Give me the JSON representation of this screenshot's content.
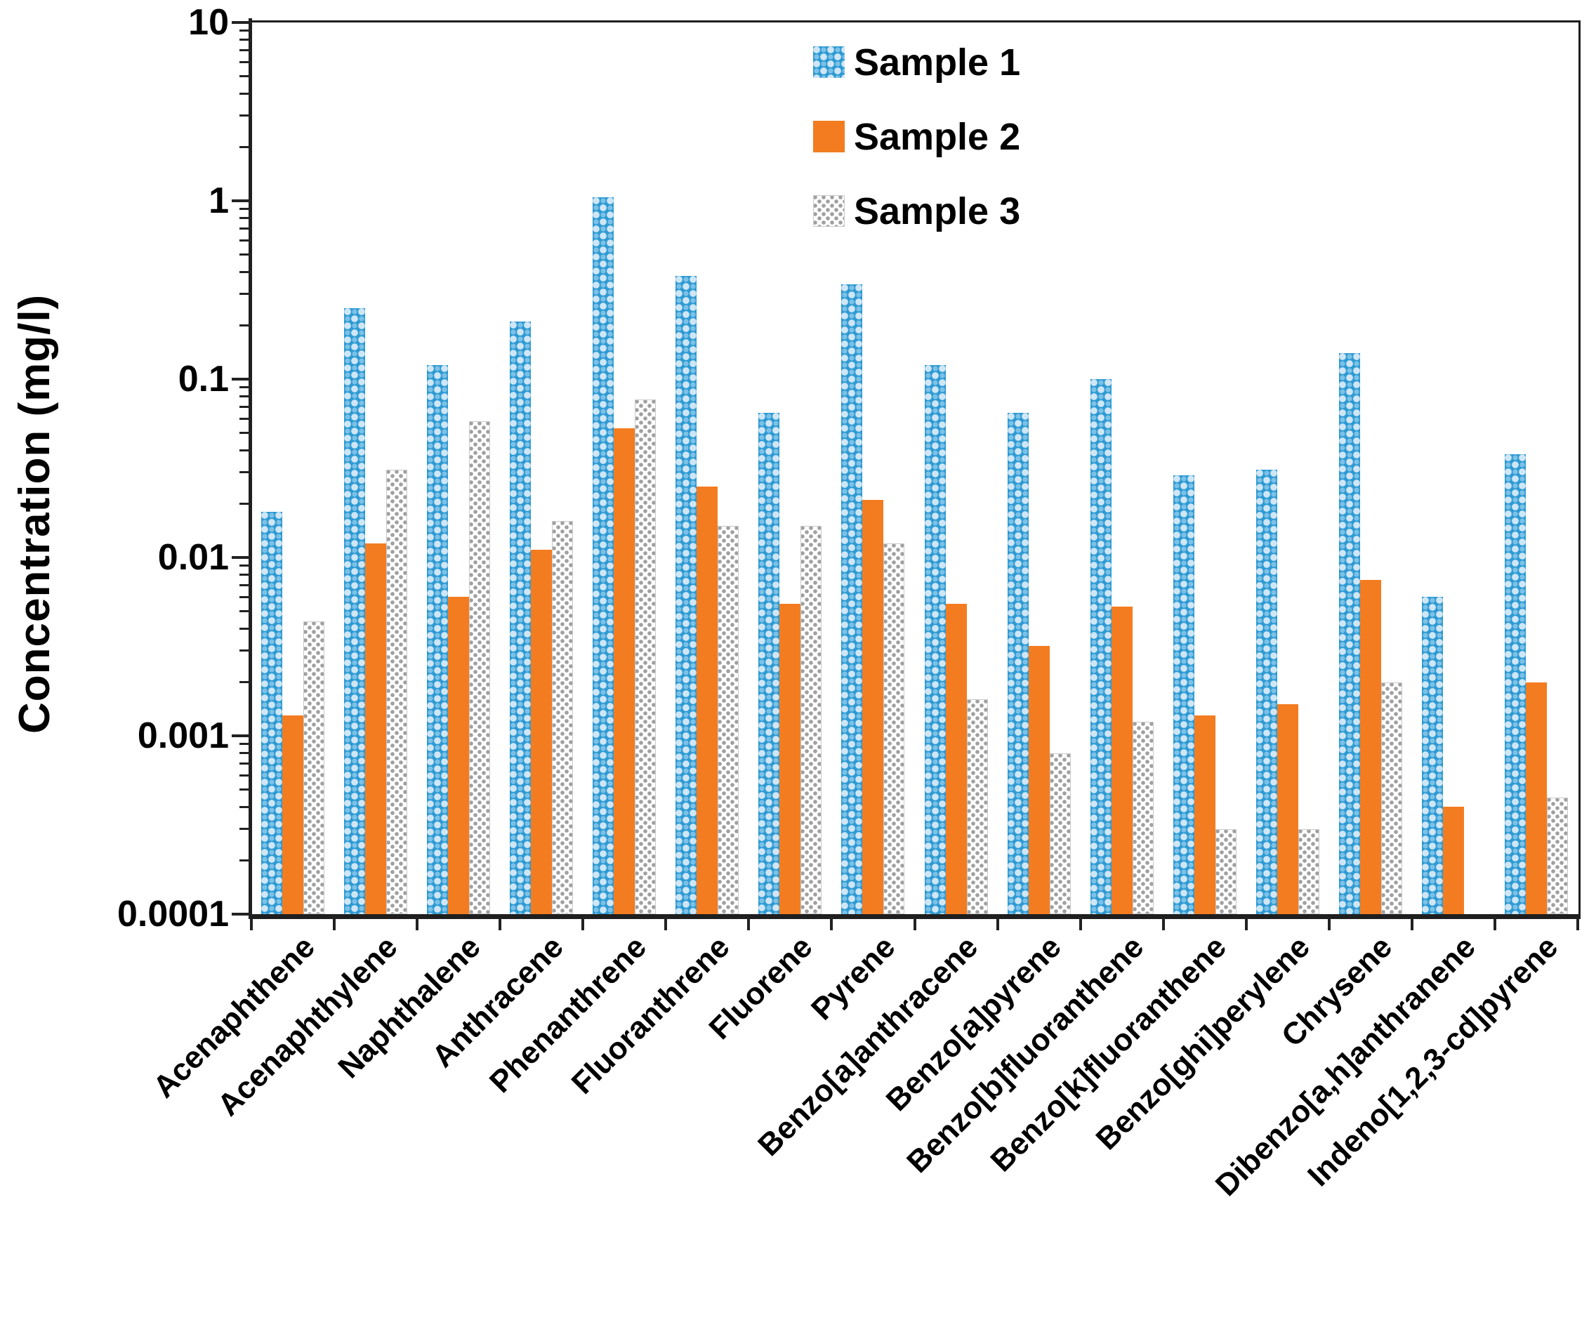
{
  "figure": {
    "y_axis_title": "Concentration (mg/l)",
    "y_tick_labels": [
      "10",
      "1",
      "0.1",
      "0.01",
      "0.001",
      "0.0001"
    ],
    "legend_items": [
      "Sample 1",
      "Sample 2",
      "Sample 3"
    ]
  },
  "colors": {
    "sample1_blue": "#2d9ad3",
    "sample1_pattern_light": "#d8eaf7",
    "sample2_orange": "#f47c20",
    "sample3_gray_dot": "#a0a0a0",
    "axis_black": "#1f1f1f"
  },
  "chart_data": {
    "type": "bar",
    "title": "",
    "xlabel": "",
    "ylabel": "Concentration (mg/l)",
    "y_scale": "log",
    "ylim": [
      0.0001,
      10
    ],
    "y_ticks": [
      10,
      1,
      0.1,
      0.01,
      0.001,
      0.0001
    ],
    "grid": false,
    "legend_position": "top-center-inside",
    "categories": [
      "Acenaphthene",
      "Acenaphthylene",
      "Naphthalene",
      "Anthracene",
      "Phenanthrene",
      "Fluoranthrene",
      "Fluorene",
      "Pyrene",
      "Benzo[a]anthracene",
      "Benzo[a]pyrene",
      "Benzo[b]fluoranthene",
      "Benzo[k]fluoranthene",
      "Benzo[ghi]perylene",
      "Chrysene",
      "Dibenzo[a,h]anthranene",
      "Indeno[1,2,3-cd]pyrene"
    ],
    "series": [
      {
        "name": "Sample 1",
        "values": [
          0.018,
          0.25,
          0.12,
          0.21,
          1.05,
          0.38,
          0.065,
          0.34,
          0.12,
          0.065,
          0.1,
          0.029,
          0.031,
          0.14,
          0.006,
          0.038
        ]
      },
      {
        "name": "Sample 2",
        "values": [
          0.0013,
          0.012,
          0.006,
          0.011,
          0.053,
          0.025,
          0.0055,
          0.021,
          0.0055,
          0.0032,
          0.0053,
          0.0013,
          0.0015,
          0.0075,
          0.0004,
          0.002
        ]
      },
      {
        "name": "Sample 3",
        "values": [
          0.0044,
          0.031,
          0.058,
          0.016,
          0.077,
          0.015,
          0.015,
          0.012,
          0.0016,
          0.0008,
          0.0012,
          0.0003,
          0.0003,
          0.002,
          null,
          0.00045
        ]
      }
    ]
  }
}
